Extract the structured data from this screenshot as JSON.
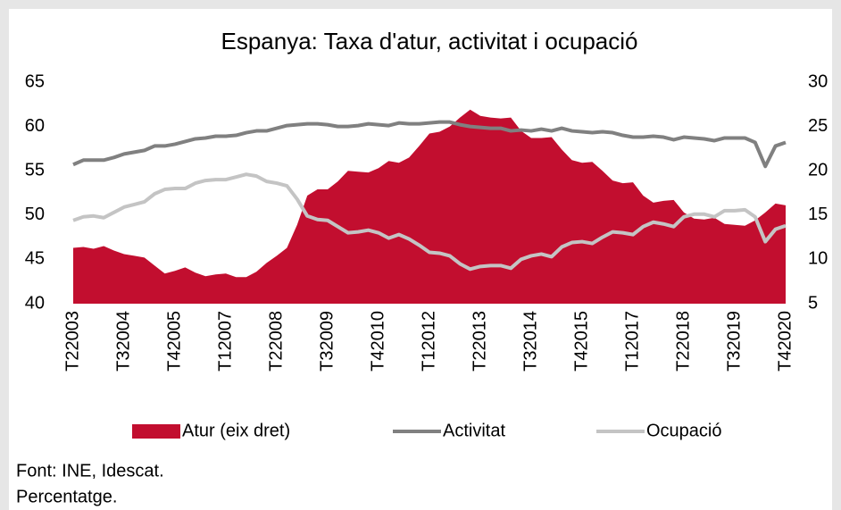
{
  "chart_data": {
    "type": "area_line",
    "title": "Espanya: Taxa d'atur, activitat i ocupació",
    "source": "Font: INE, Idescat.",
    "note": "Percentatge.",
    "categories": [
      "T22003",
      null,
      null,
      null,
      null,
      "T32004",
      null,
      null,
      null,
      null,
      "T42005",
      null,
      null,
      null,
      null,
      "T12007",
      null,
      null,
      null,
      null,
      "T22008",
      null,
      null,
      null,
      null,
      "T32009",
      null,
      null,
      null,
      null,
      "T42010",
      null,
      null,
      null,
      null,
      "T12012",
      null,
      null,
      null,
      null,
      "T22013",
      null,
      null,
      null,
      null,
      "T32014",
      null,
      null,
      null,
      null,
      "T42015",
      null,
      null,
      null,
      null,
      "T12017",
      null,
      null,
      null,
      null,
      "T22018",
      null,
      null,
      null,
      null,
      "T32019",
      null,
      null,
      null,
      null,
      "T42020"
    ],
    "ylim": [
      40,
      65
    ],
    "yticks": [
      40,
      45,
      50,
      55,
      60,
      65
    ],
    "y2lim": [
      5,
      30
    ],
    "y2ticks": [
      5,
      10,
      15,
      20,
      25,
      30
    ],
    "series": [
      {
        "name": "Atur (eix dret)",
        "color": "#c20e2f",
        "axis": "y2",
        "kind": "area",
        "values": [
          11.3,
          11.4,
          11.2,
          11.5,
          11.0,
          10.6,
          10.4,
          10.2,
          9.3,
          8.4,
          8.7,
          9.1,
          8.5,
          8.1,
          8.3,
          8.4,
          8.0,
          8.0,
          8.6,
          9.6,
          10.4,
          11.3,
          13.9,
          17.2,
          17.9,
          17.9,
          18.8,
          20.0,
          19.9,
          19.8,
          20.3,
          21.1,
          20.9,
          21.5,
          22.8,
          24.2,
          24.4,
          25.0,
          26.0,
          26.9,
          26.2,
          26.0,
          25.9,
          26.0,
          24.5,
          23.7,
          23.7,
          23.8,
          22.4,
          21.2,
          20.9,
          21.0,
          20.0,
          18.9,
          18.6,
          18.7,
          17.2,
          16.4,
          16.6,
          16.7,
          15.3,
          14.6,
          14.5,
          14.7,
          14.0,
          13.9,
          13.8,
          14.4,
          15.3,
          16.3,
          16.1
        ]
      },
      {
        "name": "Activitat",
        "color": "#808080",
        "kind": "line",
        "values": [
          55.7,
          56.2,
          56.2,
          56.2,
          56.5,
          56.9,
          57.1,
          57.3,
          57.8,
          57.8,
          58.0,
          58.3,
          58.6,
          58.7,
          58.9,
          58.9,
          59.0,
          59.3,
          59.5,
          59.5,
          59.8,
          60.1,
          60.2,
          60.3,
          60.3,
          60.2,
          60.0,
          60.0,
          60.1,
          60.3,
          60.2,
          60.1,
          60.4,
          60.3,
          60.3,
          60.4,
          60.5,
          60.5,
          60.2,
          60.0,
          59.9,
          59.8,
          59.8,
          59.5,
          59.6,
          59.5,
          59.7,
          59.5,
          59.8,
          59.5,
          59.4,
          59.3,
          59.4,
          59.3,
          59.0,
          58.8,
          58.8,
          58.9,
          58.8,
          58.5,
          58.8,
          58.7,
          58.6,
          58.4,
          58.7,
          58.7,
          58.7,
          58.2,
          55.5,
          57.8,
          58.2
        ]
      },
      {
        "name": "Ocupació",
        "color": "#c4c4c4",
        "kind": "line",
        "values": [
          49.4,
          49.8,
          49.9,
          49.7,
          50.3,
          50.9,
          51.2,
          51.5,
          52.4,
          52.9,
          53.0,
          53.0,
          53.6,
          53.9,
          54.0,
          54.0,
          54.3,
          54.6,
          54.4,
          53.8,
          53.6,
          53.3,
          51.8,
          49.9,
          49.5,
          49.4,
          48.7,
          48.0,
          48.1,
          48.3,
          48.0,
          47.4,
          47.8,
          47.3,
          46.6,
          45.8,
          45.7,
          45.4,
          44.5,
          43.9,
          44.2,
          44.3,
          44.3,
          44.0,
          45.0,
          45.4,
          45.6,
          45.3,
          46.4,
          46.9,
          47.0,
          46.8,
          47.5,
          48.1,
          48.0,
          47.8,
          48.7,
          49.2,
          49.0,
          48.7,
          49.8,
          50.1,
          50.1,
          49.8,
          50.5,
          50.5,
          50.6,
          49.8,
          47.0,
          48.4,
          48.8
        ]
      }
    ]
  }
}
